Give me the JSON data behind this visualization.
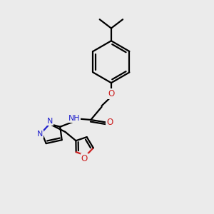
{
  "bg_color": "#ebebeb",
  "bond_color": "#000000",
  "nitrogen_color": "#2020cc",
  "oxygen_color": "#cc2020",
  "line_width": 1.6,
  "figsize": [
    3.0,
    3.0
  ],
  "dpi": 100,
  "xlim": [
    0,
    10
  ],
  "ylim": [
    0,
    10
  ]
}
